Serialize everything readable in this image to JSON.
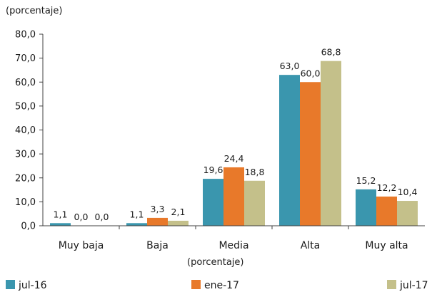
{
  "chart_data": {
    "type": "bar",
    "unit_top": "(porcentaje)",
    "unit_bottom": "(porcentaje)",
    "categories": [
      "Muy baja",
      "Baja",
      "Media",
      "Alta",
      "Muy alta"
    ],
    "series": [
      {
        "name": "jul-16",
        "color": "#3a96ae",
        "values": [
          1.1,
          1.1,
          19.6,
          63.0,
          15.2
        ],
        "labels": [
          "1,1",
          "1,1",
          "19,6",
          "63,0",
          "15,2"
        ]
      },
      {
        "name": "ene-17",
        "color": "#e8792a",
        "values": [
          0.0,
          3.3,
          24.4,
          60.0,
          12.2
        ],
        "labels": [
          "0,0",
          "3,3",
          "24,4",
          "60,0",
          "12,2"
        ]
      },
      {
        "name": "jul-17",
        "color": "#c4c08a",
        "values": [
          0.0,
          2.1,
          18.8,
          68.8,
          10.4
        ],
        "labels": [
          "0,0",
          "2,1",
          "18,8",
          "68,8",
          "10,4"
        ]
      }
    ],
    "ylim": [
      0,
      80
    ],
    "yticks": [
      0,
      10,
      20,
      30,
      40,
      50,
      60,
      70,
      80
    ],
    "ytick_labels": [
      "0,0",
      "10,0",
      "20,0",
      "30,0",
      "40,0",
      "50,0",
      "60,0",
      "70,0",
      "80,0"
    ],
    "grid": false,
    "legend_position": "bottom"
  }
}
